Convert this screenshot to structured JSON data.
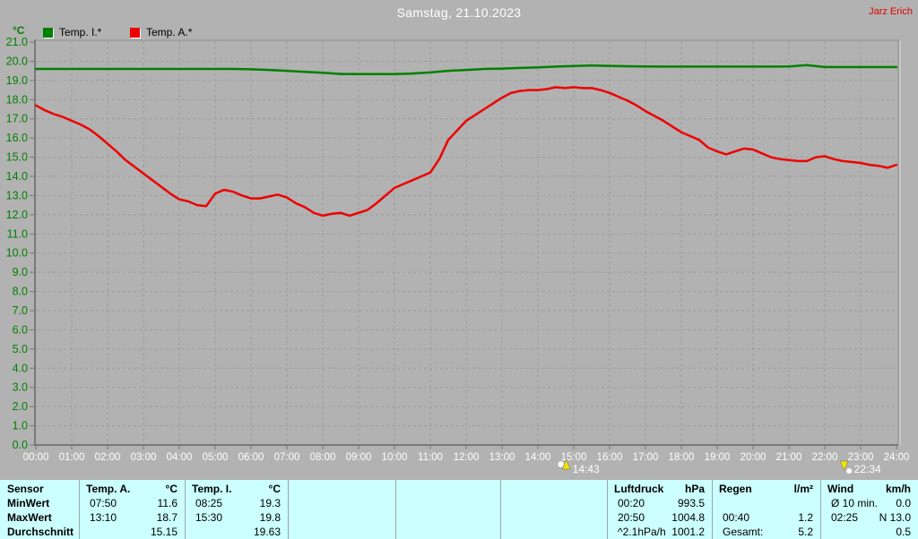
{
  "header": {
    "title": "Samstag, 21.10.2023",
    "user": "Jarz Erich"
  },
  "legend": {
    "unit_label": "°C",
    "series": [
      {
        "label": "Temp. I.*"
      },
      {
        "label": "Temp. A.*"
      }
    ]
  },
  "colors": {
    "background": "#b2b2b2",
    "title_text": "#ffffff",
    "user_text": "#e00000",
    "axis_label_green": "#008000",
    "x_label_white": "#ffffff",
    "grid": "#9b9b9b",
    "axis": "#787878",
    "frame": "#8e8e8e",
    "frame_highlight": "#d9d9d9",
    "temp_i_green": "#008000",
    "temp_a_red": "#ee0000",
    "marker_yellow": "#f2e400",
    "marker_moon": "#ffffff",
    "table_bg": "#ccffff",
    "table_separator": "#9ba8a8"
  },
  "chart_data": {
    "type": "line",
    "title": "Samstag, 21.10.2023",
    "ylabel": "°C",
    "ylim": [
      0,
      21
    ],
    "y_tick_step": 1.0,
    "grid": true,
    "legend_position": "top-left",
    "x_tick_labels": [
      "00:00",
      "01:00",
      "02:00",
      "03:00",
      "04:00",
      "05:00",
      "06:00",
      "07:00",
      "08:00",
      "09:00",
      "10:00",
      "11:00",
      "12:00",
      "13:00",
      "14:00",
      "15:00",
      "16:00",
      "17:00",
      "18:00",
      "19:00",
      "20:00",
      "21:00",
      "22:00",
      "23:00",
      "24:00"
    ],
    "series": [
      {
        "name": "Temp. I.*",
        "data_name": "temp-i-line",
        "color": "#008000",
        "x_start": 0,
        "x_step": 0.5,
        "values": [
          19.6,
          19.6,
          19.6,
          19.6,
          19.6,
          19.6,
          19.6,
          19.6,
          19.6,
          19.6,
          19.6,
          19.6,
          19.58,
          19.55,
          19.5,
          19.45,
          19.4,
          19.34,
          19.33,
          19.33,
          19.33,
          19.36,
          19.42,
          19.5,
          19.55,
          19.6,
          19.62,
          19.65,
          19.68,
          19.72,
          19.75,
          19.78,
          19.76,
          19.74,
          19.73,
          19.72,
          19.72,
          19.72,
          19.72,
          19.72,
          19.72,
          19.72,
          19.73,
          19.8,
          19.7,
          19.7,
          19.7,
          19.7,
          19.7
        ]
      },
      {
        "name": "Temp. A.*",
        "data_name": "temp-a-line",
        "color": "#ee0000",
        "x_start": 0,
        "x_step": 0.25,
        "values": [
          17.7,
          17.45,
          17.25,
          17.1,
          16.9,
          16.7,
          16.45,
          16.1,
          15.7,
          15.3,
          14.85,
          14.5,
          14.15,
          13.8,
          13.45,
          13.1,
          12.8,
          12.7,
          12.5,
          12.45,
          13.1,
          13.3,
          13.2,
          13.0,
          12.85,
          12.85,
          12.95,
          13.05,
          12.9,
          12.6,
          12.4,
          12.1,
          11.95,
          12.05,
          12.1,
          11.95,
          12.1,
          12.25,
          12.6,
          13.0,
          13.4,
          13.6,
          13.8,
          14.0,
          14.2,
          14.9,
          15.9,
          16.4,
          16.9,
          17.2,
          17.5,
          17.8,
          18.1,
          18.35,
          18.45,
          18.5,
          18.5,
          18.55,
          18.65,
          18.6,
          18.65,
          18.6,
          18.6,
          18.5,
          18.35,
          18.15,
          17.95,
          17.7,
          17.4,
          17.15,
          16.9,
          16.6,
          16.3,
          16.1,
          15.9,
          15.5,
          15.3,
          15.15,
          15.3,
          15.45,
          15.4,
          15.2,
          15.0,
          14.9,
          14.85,
          14.8,
          14.8,
          15.0,
          15.05,
          14.9,
          14.8,
          14.75,
          14.7,
          14.6,
          14.55,
          14.45,
          14.6
        ]
      }
    ],
    "markers": [
      {
        "type": "moonrise",
        "icon": "moon-up-icon",
        "label": "14:43",
        "hour": 14.7167
      },
      {
        "type": "moonset",
        "icon": "moon-down-icon",
        "label": "22:34",
        "hour": 22.5667
      }
    ]
  },
  "table": {
    "row_labels": [
      "Sensor",
      "MinWert",
      "MaxWert",
      "Durchschnitt"
    ],
    "columns": [
      {
        "header": [
          "Temp. A.",
          "°C"
        ],
        "rows": [
          [
            "07:50",
            "11.6"
          ],
          [
            "13:10",
            "18.7"
          ],
          [
            "",
            "15.15"
          ]
        ]
      },
      {
        "header": [
          "Temp. I.",
          "°C"
        ],
        "rows": [
          [
            "08:25",
            "19.3"
          ],
          [
            "15:30",
            "19.8"
          ],
          [
            "",
            "19.63"
          ]
        ]
      },
      {
        "header": [
          "",
          ""
        ],
        "rows": [
          [
            "",
            ""
          ],
          [
            "",
            ""
          ],
          [
            "",
            ""
          ]
        ]
      },
      {
        "header": [
          "",
          ""
        ],
        "rows": [
          [
            "",
            ""
          ],
          [
            "",
            ""
          ],
          [
            "",
            ""
          ]
        ]
      },
      {
        "header": [
          "",
          ""
        ],
        "rows": [
          [
            "",
            ""
          ],
          [
            "",
            ""
          ],
          [
            "",
            ""
          ]
        ]
      },
      {
        "header": [
          "Luftdruck",
          "hPa"
        ],
        "rows": [
          [
            "00:20",
            "993.5"
          ],
          [
            "20:50",
            "1004.8"
          ],
          [
            "^2.1hPa/h",
            "1001.2"
          ]
        ]
      },
      {
        "header": [
          "Regen",
          "l/m²"
        ],
        "rows": [
          [
            "",
            ""
          ],
          [
            "00:40",
            "1.2"
          ],
          [
            "Gesamt:",
            "5.2"
          ]
        ]
      },
      {
        "header": [
          "Wind",
          "km/h"
        ],
        "rows": [
          [
            "Ø 10 min.",
            "0.0"
          ],
          [
            "02:25",
            "N 13.0"
          ],
          [
            "",
            "0.5"
          ]
        ]
      }
    ]
  }
}
